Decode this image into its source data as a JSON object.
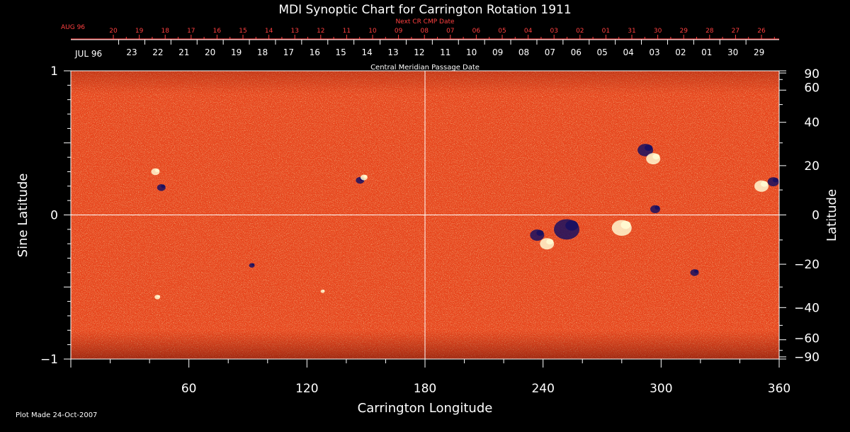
{
  "chart_data": {
    "type": "heatmap",
    "title": "MDI Synoptic Chart for Carrington Rotation 1911",
    "xlabel": "Carrington Longitude",
    "ylabel_left": "Sine Latitude",
    "ylabel_right": "Latitude",
    "xlim": [
      0,
      360
    ],
    "ylim_sine": [
      -1,
      1
    ],
    "x_ticks": [
      "60",
      "120",
      "180",
      "240",
      "300",
      "360"
    ],
    "x_tick_values": [
      60,
      120,
      180,
      240,
      300,
      360
    ],
    "y_left_ticks": [
      "1",
      "0",
      "−1"
    ],
    "y_left_tick_values": [
      1,
      0,
      -1
    ],
    "y_right_ticks": [
      "90",
      "60",
      "40",
      "20",
      "0",
      "−20",
      "−40",
      "−60",
      "−90"
    ],
    "y_right_tick_values": [
      90,
      60,
      40,
      20,
      0,
      -20,
      -40,
      -60,
      -90
    ],
    "top_axis": {
      "title": "Next CR CMP Date",
      "start_label": "AUG 96",
      "labels": [
        "20",
        "19",
        "18",
        "17",
        "16",
        "15",
        "14",
        "13",
        "12",
        "11",
        "10",
        "09",
        "08",
        "07",
        "06",
        "05",
        "04",
        "03",
        "02",
        "01",
        "31",
        "30",
        "29",
        "28",
        "27",
        "26"
      ]
    },
    "cmp_axis": {
      "title": "Central Meridian Passage Date",
      "start_label": "JUL 96",
      "labels": [
        "23",
        "22",
        "21",
        "20",
        "19",
        "18",
        "17",
        "16",
        "15",
        "14",
        "13",
        "12",
        "11",
        "10",
        "09",
        "08",
        "07",
        "06",
        "05",
        "04",
        "03",
        "02",
        "01",
        "30",
        "29"
      ]
    },
    "gridlines": {
      "longitude": [
        180
      ],
      "sine_latitude": [
        0
      ]
    },
    "colors": {
      "background_field": "#e8431a",
      "positive_polarity": "#fff8d0",
      "negative_polarity": "#1a1060",
      "annotation": "#ff4040"
    },
    "active_regions": [
      {
        "lon": 147,
        "sinlat": 0.24,
        "polarity": "negative",
        "size": 6
      },
      {
        "lon": 149,
        "sinlat": 0.26,
        "polarity": "positive",
        "size": 5
      },
      {
        "lon": 46,
        "sinlat": 0.19,
        "polarity": "negative",
        "size": 6
      },
      {
        "lon": 43,
        "sinlat": 0.3,
        "polarity": "positive",
        "size": 6
      },
      {
        "lon": 292,
        "sinlat": 0.45,
        "polarity": "negative",
        "size": 11
      },
      {
        "lon": 296,
        "sinlat": 0.39,
        "polarity": "positive",
        "size": 10
      },
      {
        "lon": 357,
        "sinlat": 0.23,
        "polarity": "negative",
        "size": 8
      },
      {
        "lon": 351,
        "sinlat": 0.2,
        "polarity": "positive",
        "size": 10
      },
      {
        "lon": 237,
        "sinlat": -0.14,
        "polarity": "negative",
        "size": 10
      },
      {
        "lon": 242,
        "sinlat": -0.2,
        "polarity": "positive",
        "size": 10
      },
      {
        "lon": 252,
        "sinlat": -0.1,
        "polarity": "negative",
        "size": 18
      },
      {
        "lon": 280,
        "sinlat": -0.09,
        "polarity": "positive",
        "size": 14
      },
      {
        "lon": 297,
        "sinlat": 0.04,
        "polarity": "negative",
        "size": 7
      },
      {
        "lon": 317,
        "sinlat": -0.4,
        "polarity": "negative",
        "size": 6
      },
      {
        "lon": 92,
        "sinlat": -0.35,
        "polarity": "negative",
        "size": 4
      },
      {
        "lon": 44,
        "sinlat": -0.57,
        "polarity": "positive",
        "size": 4
      },
      {
        "lon": 128,
        "sinlat": -0.53,
        "polarity": "positive",
        "size": 3
      }
    ]
  },
  "footer": {
    "plot_made": "Plot Made 24-Oct-2007"
  }
}
